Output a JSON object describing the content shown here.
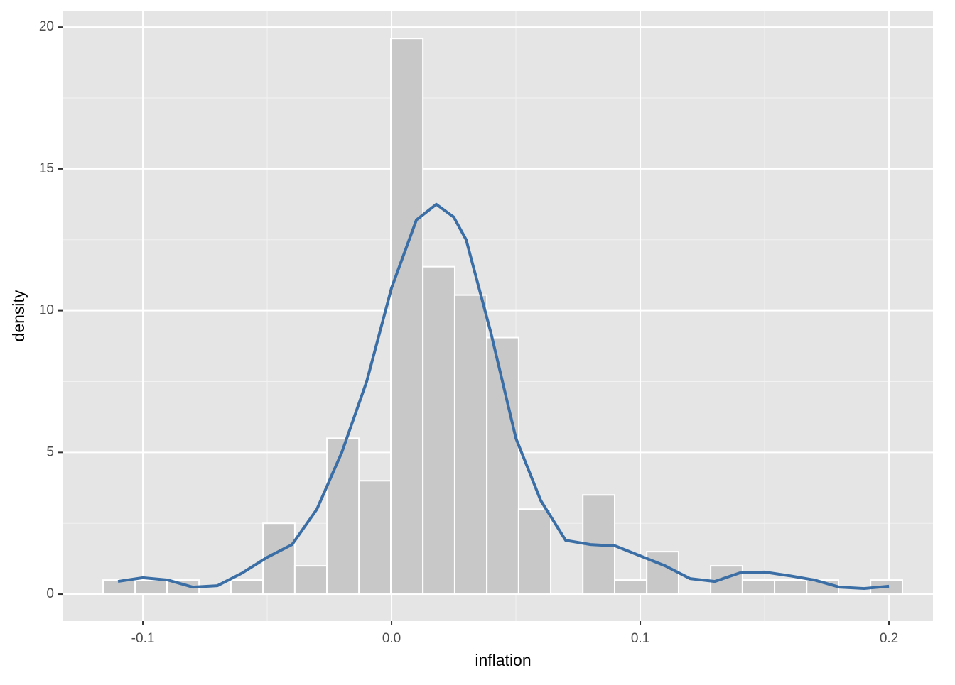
{
  "chart_data": {
    "type": "histogram",
    "xlabel": "inflation",
    "ylabel": "density",
    "bins": [
      -0.116,
      -0.1031,
      -0.0903,
      -0.0774,
      -0.0646,
      -0.0517,
      -0.0389,
      -0.026,
      -0.0131,
      -0.0003,
      0.0126,
      0.0254,
      0.0383,
      0.0511,
      0.064,
      0.0769,
      0.0897,
      0.1026,
      0.1154,
      0.1283,
      0.1411,
      0.154,
      0.1669,
      0.1797,
      0.1926,
      0.2054
    ],
    "values": [
      0.5,
      0.5,
      0.5,
      0,
      0.5,
      2.5,
      1,
      5.5,
      4,
      19.6,
      11.55,
      10.55,
      9.05,
      3.0,
      0,
      3.5,
      0.5,
      1.5,
      0,
      1.0,
      0.5,
      0.5,
      0.5,
      0,
      0.5
    ],
    "color": "#c8c8c8",
    "density": {
      "color": "#3a6ea5",
      "x": [
        -0.11,
        -0.1,
        -0.09,
        -0.08,
        -0.07,
        -0.06,
        -0.05,
        -0.04,
        -0.03,
        -0.02,
        -0.01,
        0.0,
        0.01,
        0.018,
        0.025,
        0.03,
        0.04,
        0.05,
        0.06,
        0.07,
        0.08,
        0.09,
        0.1,
        0.11,
        0.12,
        0.13,
        0.14,
        0.15,
        0.16,
        0.17,
        0.18,
        0.19,
        0.2
      ],
      "values": [
        0.45,
        0.58,
        0.5,
        0.25,
        0.3,
        0.75,
        1.3,
        1.75,
        3.0,
        5.0,
        7.5,
        10.8,
        13.2,
        13.75,
        13.3,
        12.5,
        9.2,
        5.5,
        3.3,
        1.9,
        1.75,
        1.7,
        1.35,
        1.0,
        0.55,
        0.45,
        0.75,
        0.78,
        0.65,
        0.5,
        0.25,
        0.2,
        0.28
      ]
    },
    "xlim": [
      -0.1323,
      0.2177
    ],
    "ylim": [
      -0.95,
      20.58
    ],
    "xticks": [
      {
        "value": -0.1,
        "label": "-0.1"
      },
      {
        "value": 0,
        "label": "0.0"
      },
      0.1,
      0.2
    ],
    "yticks": [
      0,
      5,
      10,
      15,
      20
    ],
    "grid": true
  }
}
